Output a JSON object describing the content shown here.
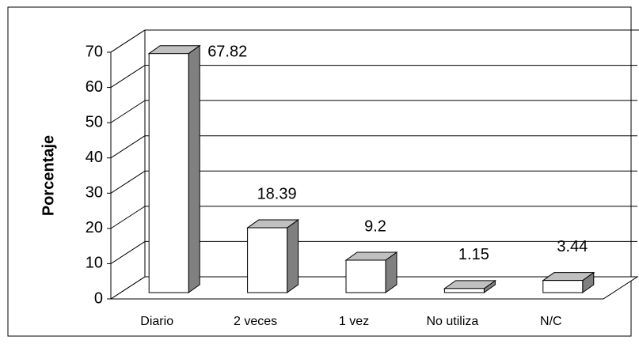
{
  "chart_data": {
    "type": "bar3d",
    "y_label": "Porcentaje",
    "categories": [
      "Diario",
      "2 veces",
      "1 vez",
      "No utiliza",
      "N/C"
    ],
    "values": [
      67.82,
      18.39,
      9.2,
      1.15,
      3.44
    ],
    "color": "#ffffff",
    "ylim": [
      0,
      70
    ],
    "yticks": [
      0,
      10,
      20,
      30,
      40,
      50,
      60,
      70
    ],
    "grid": true
  }
}
